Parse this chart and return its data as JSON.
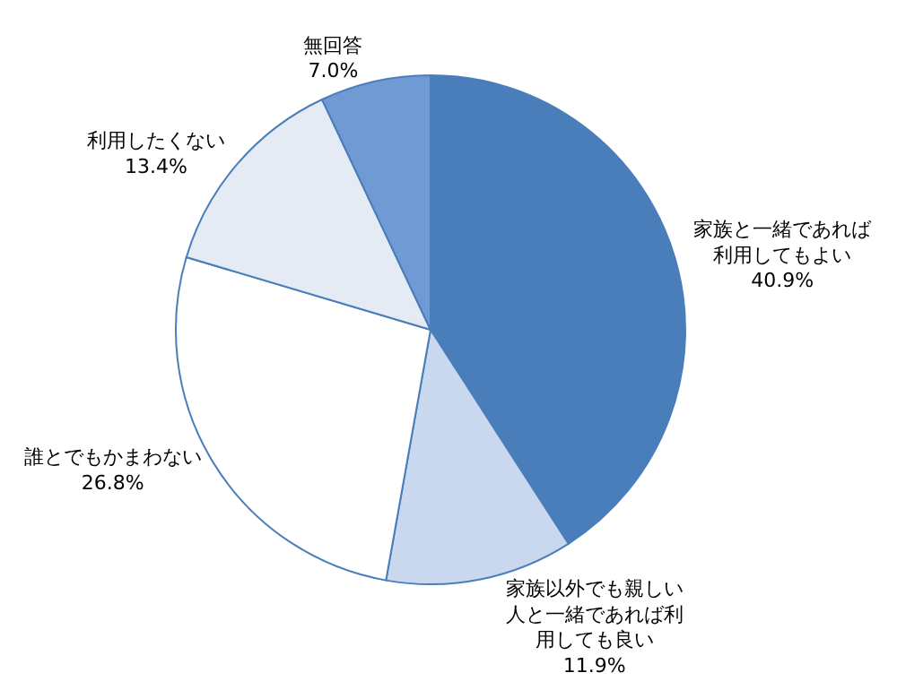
{
  "chart_data": {
    "type": "pie",
    "categories": [
      "家族と一緒であれば利用してもよい",
      "家族以外でも親しい人と一緒であれば利用しても良い",
      "誰とでもかまわない",
      "利用したくない",
      "無回答"
    ],
    "values": [
      40.9,
      11.9,
      26.8,
      13.4,
      7.0
    ],
    "value_labels": [
      "40.9%",
      "11.9%",
      "26.8%",
      "13.4%",
      "7.0%"
    ],
    "colors": [
      "#4a7ebb",
      "#c9d8ee",
      "#ffffff",
      "#e4ebf5",
      "#6f9ad3"
    ],
    "legend": false
  }
}
